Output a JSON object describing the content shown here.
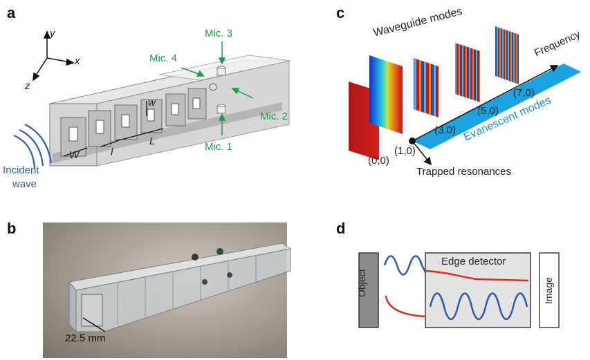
{
  "panels": {
    "a": {
      "letter": "a",
      "axes": {
        "y": "y",
        "x": "x",
        "z": "z"
      },
      "mics": {
        "mic1": "Mic. 1",
        "mic2": "Mic. 2",
        "mic3": "Mic. 3",
        "mic4": "Mic. 4"
      },
      "dims": {
        "w_big": "W",
        "w_small": "w",
        "l_small": "l",
        "L_big": "L"
      },
      "incident": {
        "line1": "Incident",
        "line2": "wave"
      }
    },
    "b": {
      "letter": "b",
      "dimension": "22.5 mm"
    },
    "c": {
      "letter": "c",
      "waveguide_modes": "Waveguide modes",
      "frequency": "Frequency",
      "evanescent": "Evanescent modes",
      "trapped": "Trapped resonances",
      "mode_labels": [
        "(0,0)",
        "(1,0)",
        "(3,0)",
        "(5,0)",
        "(7,0)"
      ]
    },
    "d": {
      "letter": "d",
      "object": "Object",
      "edge_detector": "Edge detector",
      "image": "Image"
    }
  },
  "colors": {
    "accent_green": "#1f9a4a",
    "accent_blue": "#2e5db0",
    "evanescent_band": "#1aa3e0",
    "wave_blue": "#2a56b0",
    "wave_red": "#e02a1a"
  }
}
